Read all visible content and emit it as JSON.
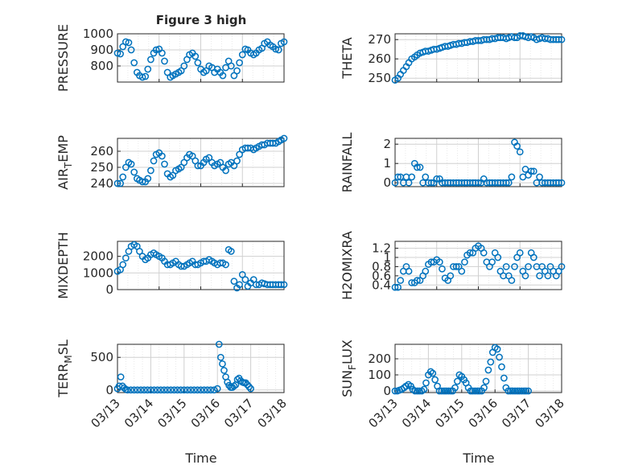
{
  "figure": {
    "title": "Figure 3 high",
    "xlabel": "Time"
  },
  "colors": {
    "marker": "#0072bd",
    "grid": "#d0d0d0",
    "axis": "#262626"
  },
  "chart_data": [
    {
      "type": "scatter",
      "ylabel": "PRESSURE",
      "xlabel": "",
      "xlim": [
        "03/13",
        "03/17"
      ],
      "ylim": [
        700,
        1000
      ],
      "yticks": [
        "800",
        "900",
        "1000"
      ],
      "xticks": [],
      "grid": true,
      "x": [
        0.0,
        0.07,
        0.13,
        0.2,
        0.27,
        0.33,
        0.4,
        0.47,
        0.53,
        0.6,
        0.67,
        0.73,
        0.8,
        0.87,
        0.93,
        1.0,
        1.07,
        1.13,
        1.2,
        1.27,
        1.33,
        1.4,
        1.47,
        1.53,
        1.6,
        1.67,
        1.73,
        1.8,
        1.87,
        1.93,
        2.0,
        2.07,
        2.13,
        2.2,
        2.27,
        2.33,
        2.4,
        2.47,
        2.53,
        2.6,
        2.67,
        2.73,
        2.8,
        2.87,
        2.93,
        3.0,
        3.07,
        3.13,
        3.2,
        3.27,
        3.33,
        3.4,
        3.47,
        3.53,
        3.6,
        3.67,
        3.73,
        3.8,
        3.87,
        3.93,
        4.0
      ],
      "y": [
        880,
        875,
        920,
        950,
        945,
        900,
        820,
        760,
        740,
        730,
        735,
        780,
        840,
        880,
        900,
        905,
        880,
        830,
        760,
        730,
        740,
        750,
        760,
        770,
        800,
        840,
        870,
        880,
        860,
        820,
        780,
        760,
        770,
        800,
        790,
        760,
        780,
        760,
        740,
        790,
        830,
        800,
        740,
        770,
        820,
        870,
        905,
        900,
        880,
        870,
        880,
        900,
        910,
        940,
        950,
        930,
        920,
        905,
        900,
        940,
        950
      ]
    },
    {
      "type": "scatter",
      "ylabel": "THETA",
      "xlabel": "",
      "xlim": [
        "03/13",
        "03/17"
      ],
      "ylim": [
        248,
        273
      ],
      "yticks": [
        "250",
        "260",
        "270"
      ],
      "xticks": [],
      "grid": true,
      "x": [
        0.0,
        0.07,
        0.13,
        0.2,
        0.27,
        0.33,
        0.4,
        0.47,
        0.53,
        0.6,
        0.67,
        0.73,
        0.8,
        0.87,
        0.93,
        1.0,
        1.07,
        1.13,
        1.2,
        1.27,
        1.33,
        1.4,
        1.47,
        1.53,
        1.6,
        1.67,
        1.73,
        1.8,
        1.87,
        1.93,
        2.0,
        2.07,
        2.13,
        2.2,
        2.27,
        2.33,
        2.4,
        2.47,
        2.53,
        2.6,
        2.67,
        2.73,
        2.8,
        2.87,
        2.93,
        3.0,
        3.07,
        3.13,
        3.2,
        3.27,
        3.33,
        3.4,
        3.47,
        3.53,
        3.6,
        3.67,
        3.73,
        3.8,
        3.87,
        3.93,
        4.0
      ],
      "y": [
        249,
        250,
        252,
        254,
        256,
        258,
        260,
        261,
        262,
        263,
        263.5,
        264,
        264,
        264.5,
        265,
        265,
        265.5,
        266,
        266.5,
        266.5,
        267,
        267.5,
        267.5,
        268,
        268,
        268.5,
        268.5,
        269,
        269,
        269.5,
        269.5,
        269.5,
        270,
        270,
        270,
        270.5,
        270.5,
        271,
        271,
        271,
        270.5,
        271,
        271.5,
        271,
        271,
        272,
        272,
        271.5,
        271,
        271.5,
        271,
        270,
        270.5,
        271,
        270.5,
        270.5,
        270,
        270,
        270,
        270,
        270
      ]
    },
    {
      "type": "scatter",
      "ylabel": "AIR_TEMP",
      "xlabel": "",
      "xlim": [
        "03/13",
        "03/17"
      ],
      "ylim": [
        238,
        268
      ],
      "yticks": [
        "240",
        "250",
        "260"
      ],
      "xticks": [],
      "grid": true,
      "x": [
        0.0,
        0.07,
        0.13,
        0.2,
        0.27,
        0.33,
        0.4,
        0.47,
        0.53,
        0.6,
        0.67,
        0.73,
        0.8,
        0.87,
        0.93,
        1.0,
        1.07,
        1.13,
        1.2,
        1.27,
        1.33,
        1.4,
        1.47,
        1.53,
        1.6,
        1.67,
        1.73,
        1.8,
        1.87,
        1.93,
        2.0,
        2.07,
        2.13,
        2.2,
        2.27,
        2.33,
        2.4,
        2.47,
        2.53,
        2.6,
        2.67,
        2.73,
        2.8,
        2.87,
        2.93,
        3.0,
        3.07,
        3.13,
        3.2,
        3.27,
        3.33,
        3.4,
        3.47,
        3.53,
        3.6,
        3.67,
        3.73,
        3.8,
        3.87,
        3.93,
        4.0
      ],
      "y": [
        240,
        240,
        244,
        250,
        253,
        252,
        247,
        243,
        242,
        241,
        241,
        243,
        248,
        254,
        258,
        259,
        257,
        252,
        246,
        244,
        245,
        248,
        249,
        250,
        253,
        256,
        258,
        257,
        254,
        251,
        251,
        253,
        255,
        256,
        253,
        251,
        252,
        253,
        250,
        248,
        252,
        253,
        251,
        254,
        258,
        261,
        262,
        262,
        262,
        261,
        262,
        263,
        264,
        264,
        265,
        265,
        265,
        265,
        266,
        267,
        268
      ]
    },
    {
      "type": "scatter",
      "ylabel": "RAINFALL",
      "xlabel": "",
      "xlim": [
        "03/13",
        "03/17"
      ],
      "ylim": [
        -0.2,
        2.3
      ],
      "yticks": [
        "0",
        "1",
        "2"
      ],
      "xticks": [],
      "grid": true,
      "x": [
        0.0,
        0.07,
        0.13,
        0.2,
        0.27,
        0.33,
        0.4,
        0.47,
        0.53,
        0.6,
        0.67,
        0.73,
        0.8,
        0.87,
        0.93,
        1.0,
        1.07,
        1.13,
        1.2,
        1.27,
        1.33,
        1.4,
        1.47,
        1.53,
        1.6,
        1.67,
        1.73,
        1.8,
        1.87,
        1.93,
        2.0,
        2.07,
        2.13,
        2.2,
        2.27,
        2.33,
        2.4,
        2.47,
        2.53,
        2.6,
        2.67,
        2.73,
        2.8,
        2.87,
        2.93,
        3.0,
        3.07,
        3.13,
        3.2,
        3.27,
        3.33,
        3.4,
        3.47,
        3.53,
        3.6,
        3.67,
        3.73,
        3.8,
        3.87,
        3.93,
        4.0
      ],
      "y": [
        0,
        0.3,
        0.3,
        0,
        0.3,
        0,
        0.3,
        1.0,
        0.8,
        0.8,
        0,
        0.3,
        0,
        0,
        0,
        0.2,
        0.2,
        0,
        0,
        0,
        0,
        0,
        0,
        0,
        0,
        0,
        0,
        0,
        0,
        0,
        0,
        0,
        0.2,
        0,
        0,
        0,
        0,
        0,
        0,
        0,
        0,
        0,
        0.3,
        2.1,
        1.9,
        1.6,
        0.3,
        0.7,
        0.4,
        0.6,
        0.6,
        0,
        0.3,
        0,
        0,
        0,
        0,
        0,
        0,
        0,
        0
      ]
    },
    {
      "type": "scatter",
      "ylabel": "MIXDEPTH",
      "xlabel": "",
      "xlim": [
        "03/13",
        "03/17"
      ],
      "ylim": [
        0,
        2900
      ],
      "yticks": [
        "0",
        "1000",
        "2000"
      ],
      "xticks": [],
      "grid": true,
      "x": [
        0.0,
        0.07,
        0.13,
        0.2,
        0.27,
        0.33,
        0.4,
        0.47,
        0.53,
        0.6,
        0.67,
        0.73,
        0.8,
        0.87,
        0.93,
        1.0,
        1.07,
        1.13,
        1.2,
        1.27,
        1.33,
        1.4,
        1.47,
        1.53,
        1.6,
        1.67,
        1.73,
        1.8,
        1.87,
        1.93,
        2.0,
        2.07,
        2.13,
        2.2,
        2.27,
        2.33,
        2.4,
        2.47,
        2.53,
        2.6,
        2.67,
        2.73,
        2.8,
        2.87,
        2.93,
        3.0,
        3.07,
        3.13,
        3.2,
        3.27,
        3.33,
        3.4,
        3.47,
        3.53,
        3.6,
        3.67,
        3.73,
        3.8,
        3.87,
        3.93,
        4.0
      ],
      "y": [
        1100,
        1200,
        1500,
        1900,
        2300,
        2600,
        2700,
        2600,
        2300,
        2000,
        1800,
        1900,
        2100,
        2200,
        2100,
        2000,
        1900,
        1700,
        1500,
        1500,
        1600,
        1700,
        1500,
        1400,
        1400,
        1500,
        1600,
        1700,
        1500,
        1500,
        1600,
        1700,
        1700,
        1800,
        1700,
        1600,
        1500,
        1600,
        1600,
        1500,
        2400,
        2300,
        500,
        100,
        300,
        900,
        600,
        200,
        400,
        600,
        300,
        300,
        400,
        350,
        300,
        300,
        300,
        300,
        300,
        300,
        300
      ]
    },
    {
      "type": "scatter",
      "ylabel": "H2OMIXRA",
      "xlabel": "",
      "xlim": [
        "03/13",
        "03/17"
      ],
      "ylim": [
        0.3,
        1.35
      ],
      "yticks": [
        "0.4",
        "0.6",
        "0.8",
        "1",
        "1.2"
      ],
      "xticks": [],
      "grid": true,
      "x": [
        0.0,
        0.07,
        0.13,
        0.2,
        0.27,
        0.33,
        0.4,
        0.47,
        0.53,
        0.6,
        0.67,
        0.73,
        0.8,
        0.87,
        0.93,
        1.0,
        1.07,
        1.13,
        1.2,
        1.27,
        1.33,
        1.4,
        1.47,
        1.53,
        1.6,
        1.67,
        1.73,
        1.8,
        1.87,
        1.93,
        2.0,
        2.07,
        2.13,
        2.2,
        2.27,
        2.33,
        2.4,
        2.47,
        2.53,
        2.6,
        2.67,
        2.73,
        2.8,
        2.87,
        2.93,
        3.0,
        3.07,
        3.13,
        3.2,
        3.27,
        3.33,
        3.4,
        3.47,
        3.53,
        3.6,
        3.67,
        3.73,
        3.8,
        3.87,
        3.93,
        4.0
      ],
      "y": [
        0.35,
        0.35,
        0.5,
        0.7,
        0.8,
        0.7,
        0.45,
        0.45,
        0.5,
        0.5,
        0.6,
        0.7,
        0.85,
        0.9,
        0.9,
        0.95,
        0.9,
        0.75,
        0.55,
        0.5,
        0.6,
        0.8,
        0.8,
        0.8,
        0.7,
        0.9,
        1.05,
        1.1,
        1.1,
        1.2,
        1.25,
        1.2,
        1.1,
        0.9,
        0.8,
        0.9,
        1.1,
        1.0,
        0.7,
        0.6,
        0.8,
        0.6,
        0.5,
        0.8,
        1.0,
        1.1,
        0.7,
        0.6,
        0.8,
        1.1,
        1.0,
        0.8,
        0.6,
        0.8,
        0.7,
        0.6,
        0.8,
        0.7,
        0.6,
        0.7,
        0.8
      ]
    },
    {
      "type": "scatter",
      "ylabel": "TERR_MSL",
      "xlabel": "Time",
      "xlim": [
        "03/13",
        "03/18"
      ],
      "ylim": [
        -40,
        700
      ],
      "yticks": [
        "0",
        "500"
      ],
      "xticks": [
        "03/13",
        "03/14",
        "03/15",
        "03/16",
        "03/17",
        "03/18"
      ],
      "grid": true,
      "x": [
        0.0,
        0.05,
        0.1,
        0.15,
        0.2,
        0.25,
        0.3,
        0.4,
        0.5,
        0.6,
        0.7,
        0.8,
        0.9,
        1.0,
        1.1,
        1.2,
        1.3,
        1.4,
        1.5,
        1.6,
        1.7,
        1.8,
        1.9,
        2.0,
        2.1,
        2.2,
        2.3,
        2.4,
        2.5,
        2.6,
        2.7,
        2.8,
        2.9,
        3.0,
        3.05,
        3.1,
        3.15,
        3.2,
        3.25,
        3.3,
        3.35,
        3.4,
        3.45,
        3.5,
        3.55,
        3.6,
        3.65,
        3.7,
        3.75,
        3.8,
        3.85,
        3.9,
        3.95,
        4.0
      ],
      "y": [
        20,
        60,
        200,
        60,
        30,
        10,
        0,
        0,
        0,
        0,
        0,
        0,
        0,
        0,
        0,
        0,
        0,
        0,
        0,
        0,
        0,
        0,
        0,
        0,
        0,
        0,
        0,
        0,
        0,
        0,
        0,
        0,
        0,
        20,
        700,
        500,
        400,
        300,
        200,
        120,
        70,
        40,
        40,
        60,
        80,
        160,
        180,
        140,
        120,
        110,
        110,
        80,
        50,
        20
      ]
    },
    {
      "type": "scatter",
      "ylabel": "SUN_FLUX",
      "xlabel": "Time",
      "xlim": [
        "03/13",
        "03/18"
      ],
      "ylim": [
        -10,
        290
      ],
      "yticks": [
        "0",
        "100",
        "200"
      ],
      "xticks": [
        "03/13",
        "03/14",
        "03/15",
        "03/16",
        "03/17",
        "03/18"
      ],
      "grid": true,
      "x": [
        0.0,
        0.07,
        0.13,
        0.2,
        0.27,
        0.33,
        0.4,
        0.47,
        0.53,
        0.6,
        0.67,
        0.73,
        0.8,
        0.87,
        0.93,
        1.0,
        1.07,
        1.13,
        1.2,
        1.27,
        1.33,
        1.4,
        1.47,
        1.53,
        1.6,
        1.67,
        1.73,
        1.8,
        1.87,
        1.93,
        2.0,
        2.07,
        2.13,
        2.2,
        2.27,
        2.33,
        2.4,
        2.47,
        2.53,
        2.6,
        2.67,
        2.73,
        2.8,
        2.87,
        2.93,
        3.0,
        3.07,
        3.13,
        3.2,
        3.27,
        3.33,
        3.4,
        3.47,
        3.53,
        3.6,
        3.67,
        3.73,
        3.8,
        3.87,
        3.93,
        4.0
      ],
      "y": [
        0,
        0,
        5,
        10,
        20,
        30,
        40,
        30,
        10,
        0,
        0,
        0,
        0,
        10,
        50,
        100,
        120,
        110,
        70,
        30,
        0,
        0,
        0,
        0,
        0,
        0,
        0,
        20,
        60,
        100,
        90,
        70,
        50,
        20,
        0,
        0,
        0,
        0,
        0,
        0,
        20,
        60,
        130,
        180,
        240,
        270,
        260,
        210,
        150,
        80,
        20,
        0,
        0,
        0,
        0,
        0,
        0,
        0,
        0,
        0,
        0
      ]
    }
  ]
}
